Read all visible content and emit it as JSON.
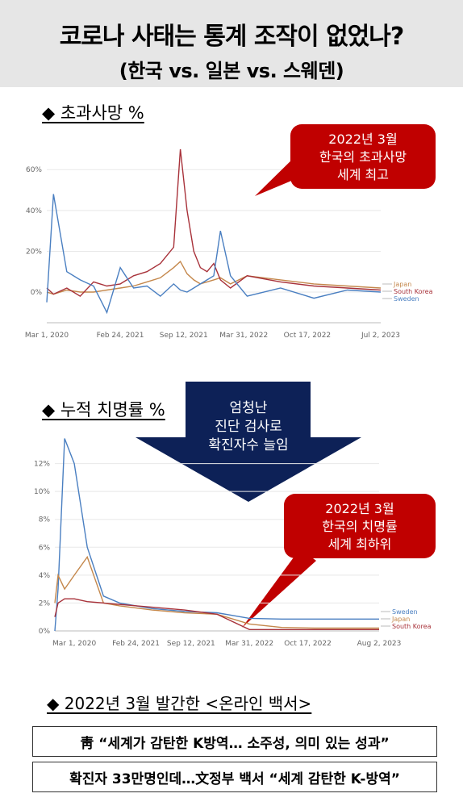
{
  "header": {
    "title": "코로나 사태는 통계 조작이 없었나?",
    "subtitle": "(한국 vs. 일본 vs. 스웨덴)"
  },
  "section1": {
    "label": "◆ 초과사망 %"
  },
  "callout1": {
    "lines": [
      "2022년 3월",
      "한국의 초과사망",
      "세계 최고"
    ]
  },
  "section2": {
    "label": "◆ 누적 치명률 %"
  },
  "arrow": {
    "lines": [
      "엄청난",
      "진단 검사로",
      "확진자수 늘임"
    ]
  },
  "callout2": {
    "lines": [
      "2022년 3월",
      "한국의 치명률",
      "세계 최하위"
    ]
  },
  "section3": {
    "label": "◆ 2022년 3월 발간한 <온라인 백서>"
  },
  "headlines": [
    "靑 “세계가 감탄한 K방역… 소주성, 의미 있는 성과”",
    "확진자 33만명인데…文정부 백서 “세계 감탄한 K-방역”"
  ],
  "colors": {
    "south_korea": "#a8323a",
    "japan": "#c4874b",
    "sweden": "#4a7fc1",
    "callout": "#c00000",
    "arrow": "#0d2157"
  },
  "chart_data": [
    {
      "type": "line",
      "xlabel": "",
      "ylabel": "",
      "x_ticks": [
        "Mar 1, 2020",
        "Feb 24, 2021",
        "Sep 12, 2021",
        "Mar 31, 2022",
        "Oct 17, 2022",
        "Jul 2, 2023"
      ],
      "y_ticks": [
        "0%",
        "20%",
        "40%",
        "60%"
      ],
      "ylim": [
        -15,
        68
      ],
      "legend": [
        "Japan",
        "South Korea",
        "Sweden"
      ],
      "x": [
        0,
        0.2,
        0.6,
        1,
        1.4,
        1.8,
        2.2,
        2.6,
        3.0,
        3.4,
        3.8,
        4.0,
        4.2,
        4.4,
        4.6,
        4.8,
        5.0,
        5.2,
        5.5,
        6,
        7,
        8,
        9,
        10
      ],
      "series": [
        {
          "name": "Japan",
          "values": [
            0,
            -1,
            1,
            0,
            0,
            1,
            2,
            3,
            5,
            7,
            12,
            15,
            9,
            6,
            4,
            5,
            6,
            7,
            4,
            8,
            6,
            4,
            3,
            2
          ]
        },
        {
          "name": "South Korea",
          "values": [
            2,
            -1,
            2,
            -2,
            5,
            3,
            4,
            8,
            10,
            14,
            22,
            70,
            40,
            20,
            12,
            10,
            14,
            6,
            2,
            8,
            5,
            3,
            2,
            1
          ]
        },
        {
          "name": "Sweden",
          "values": [
            -5,
            48,
            10,
            6,
            3,
            -10,
            12,
            2,
            3,
            -2,
            4,
            1,
            0,
            2,
            4,
            6,
            8,
            30,
            8,
            -2,
            2,
            -3,
            1,
            0
          ]
        }
      ]
    },
    {
      "type": "line",
      "xlabel": "",
      "ylabel": "",
      "x_ticks": [
        "Mar 1, 2020",
        "Feb 24, 2021",
        "Sep 12, 2021",
        "Mar 31, 2022",
        "Oct 17, 2022",
        "Aug 2, 2023"
      ],
      "y_ticks": [
        "0%",
        "2%",
        "4%",
        "6%",
        "8%",
        "10%",
        "12%"
      ],
      "ylim": [
        0,
        14
      ],
      "legend": [
        "Sweden",
        "Japan",
        "South Korea"
      ],
      "x": [
        0,
        0.1,
        0.3,
        0.6,
        1.0,
        1.5,
        2.0,
        3.0,
        4.0,
        5.0,
        6.0,
        7.0,
        8.0,
        9.0,
        10.0
      ],
      "series": [
        {
          "name": "Sweden",
          "values": [
            0,
            3,
            13.8,
            12,
            6,
            2.5,
            2,
            1.6,
            1.4,
            1.3,
            0.9,
            0.85,
            0.85,
            0.85,
            0.85
          ]
        },
        {
          "name": "Japan",
          "values": [
            2,
            4,
            3,
            4,
            5.3,
            2,
            1.8,
            1.5,
            1.3,
            1.2,
            0.5,
            0.25,
            0.2,
            0.2,
            0.2
          ]
        },
        {
          "name": "South Korea",
          "values": [
            1,
            2,
            2.3,
            2.3,
            2.1,
            2,
            1.9,
            1.7,
            1.5,
            1.2,
            0.1,
            0.1,
            0.1,
            0.1,
            0.1
          ]
        }
      ]
    }
  ]
}
